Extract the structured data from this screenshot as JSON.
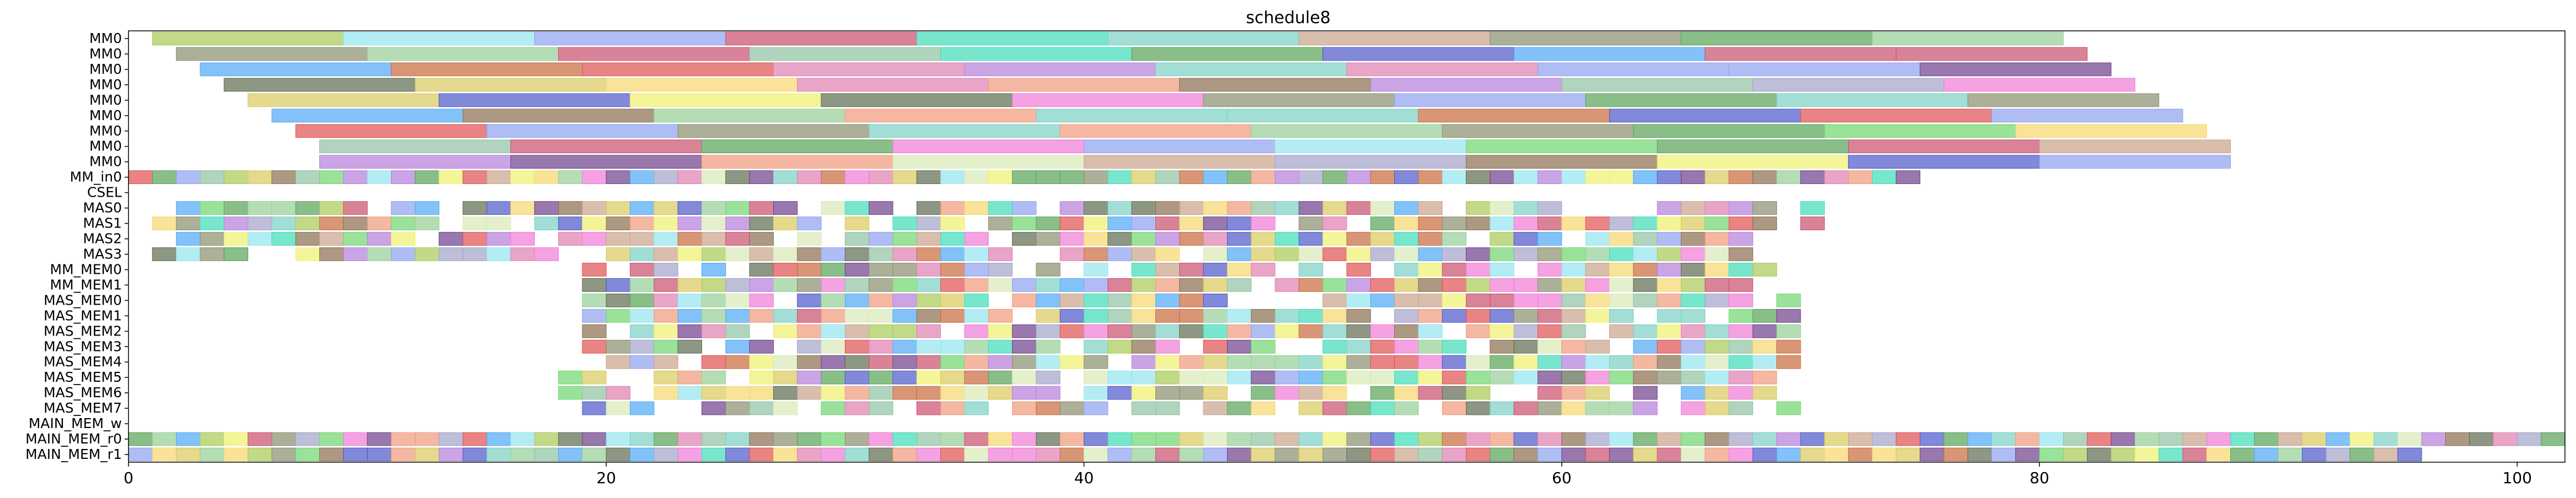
{
  "chart_data": {
    "type": "gantt",
    "title": "schedule8",
    "xlabel": "",
    "ylabel": "",
    "xlim": [
      0,
      102
    ],
    "xticks": [
      0,
      20,
      40,
      60,
      80,
      100
    ],
    "grid": false,
    "legend": "none",
    "rows": [
      "MM0",
      "MM0",
      "MM0",
      "MM0",
      "MM0",
      "MM0",
      "MM0",
      "MM0",
      "MM0",
      "MM_in0",
      "CSEL",
      "MAS0",
      "MAS1",
      "MAS2",
      "MAS3",
      "MM_MEM0",
      "MM_MEM1",
      "MAS_MEM0",
      "MAS_MEM1",
      "MAS_MEM2",
      "MAS_MEM3",
      "MAS_MEM4",
      "MAS_MEM5",
      "MAS_MEM6",
      "MAS_MEM7",
      "MAIN_MEM_w",
      "MAIN_MEM_r0",
      "MAIN_MEM_r1"
    ],
    "palette": [
      "#c94f6d",
      "#6fd66f",
      "#b57edc",
      "#a8c956",
      "#3fdcb8",
      "#8fc2a1",
      "#c96a3c",
      "#8fa1f0",
      "#d8e9b6",
      "#4d57c9",
      "#e07fb0",
      "#8a8f6e",
      "#7ad0c3",
      "#d8c95c",
      "#f07ad6",
      "#5c6b4f",
      "#4fa8f5",
      "#a3a3c9",
      "#f0f06e",
      "#c9a38a",
      "#6e3f8a",
      "#f09a7a",
      "#93e6ee",
      "#8a6e4f",
      "#57a357",
      "#f5d76e",
      "#e05050",
      "#96cf96"
    ],
    "bar_opacity": 0.7,
    "bar_height": 0.85,
    "row_tasks": [
      {
        "row": 0,
        "start": 1,
        "duration": 8,
        "count": 10,
        "gap": 0
      },
      {
        "row": 1,
        "start": 2,
        "duration": 8,
        "count": 10,
        "gap": 0
      },
      {
        "row": 2,
        "start": 3,
        "duration": 8,
        "count": 10,
        "gap": 0
      },
      {
        "row": 3,
        "start": 4,
        "duration": 8,
        "count": 10,
        "gap": 0
      },
      {
        "row": 4,
        "start": 5,
        "duration": 8,
        "count": 10,
        "gap": 0
      },
      {
        "row": 5,
        "start": 6,
        "duration": 8,
        "count": 10,
        "gap": 0
      },
      {
        "row": 6,
        "start": 7,
        "duration": 8,
        "count": 10,
        "gap": 0
      },
      {
        "row": 7,
        "start": 8,
        "duration": 8,
        "count": 10,
        "gap": 0
      },
      {
        "row": 8,
        "start": 8,
        "duration": 8,
        "count": 10,
        "gap": 0
      },
      {
        "row": 9,
        "start": 0,
        "duration": 1,
        "count": 75,
        "gap": 0
      },
      {
        "row": 11,
        "start": 1,
        "duration": 1,
        "count": 70,
        "gap": 0.12
      },
      {
        "row": 12,
        "start": 1,
        "duration": 1,
        "count": 70,
        "gap": 0.12
      },
      {
        "row": 13,
        "start": 1,
        "duration": 1,
        "count": 68,
        "gap": 0.12
      },
      {
        "row": 14,
        "start": 1,
        "duration": 1,
        "count": 68,
        "gap": 0.12
      },
      {
        "row": 15,
        "start": 19,
        "duration": 1,
        "count": 51,
        "gap": 0.15
      },
      {
        "row": 16,
        "start": 19,
        "duration": 1,
        "count": 51,
        "gap": 0.15
      },
      {
        "row": 17,
        "start": 19,
        "duration": 1,
        "count": 51,
        "gap": 0.15
      },
      {
        "row": 18,
        "start": 19,
        "duration": 1,
        "count": 51,
        "gap": 0.15
      },
      {
        "row": 19,
        "start": 19,
        "duration": 1,
        "count": 51,
        "gap": 0.15
      },
      {
        "row": 20,
        "start": 19,
        "duration": 1,
        "count": 51,
        "gap": 0.15
      },
      {
        "row": 21,
        "start": 19,
        "duration": 1,
        "count": 51,
        "gap": 0.15
      },
      {
        "row": 22,
        "start": 18,
        "duration": 1,
        "count": 51,
        "gap": 0.15
      },
      {
        "row": 23,
        "start": 18,
        "duration": 1,
        "count": 51,
        "gap": 0.15
      },
      {
        "row": 24,
        "start": 19,
        "duration": 1,
        "count": 51,
        "gap": 0.15
      },
      {
        "row": 26,
        "start": 0,
        "duration": 1,
        "count": 102,
        "gap": 0
      },
      {
        "row": 27,
        "start": 0,
        "duration": 1,
        "count": 96,
        "gap": 0
      }
    ]
  }
}
